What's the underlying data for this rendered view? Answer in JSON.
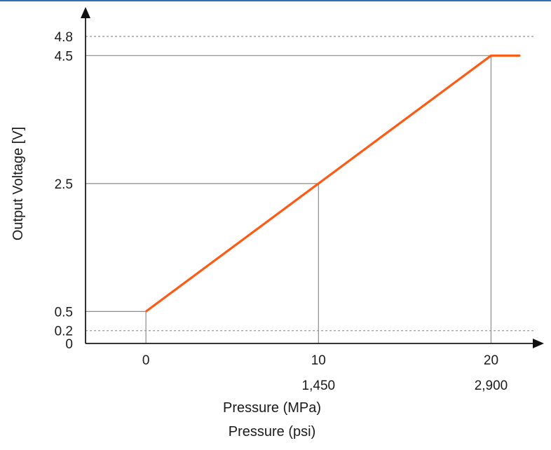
{
  "chart_data": {
    "type": "line",
    "ylabel": "Output Voltage [V]",
    "xlabel_primary": "Pressure (MPa)",
    "xlabel_secondary": "Pressure (psi)",
    "xlim": [
      -3.5,
      22.5
    ],
    "ylim": [
      0,
      5.15
    ],
    "x_ticks": [
      {
        "value": 0,
        "label": "0",
        "sublabel": ""
      },
      {
        "value": 10,
        "label": "10",
        "sublabel": "1,450"
      },
      {
        "value": 20,
        "label": "20",
        "sublabel": "2,900"
      }
    ],
    "y_ticks": [
      {
        "value": 0,
        "label": "0"
      },
      {
        "value": 0.2,
        "label": "0.2"
      },
      {
        "value": 0.5,
        "label": "0.5"
      },
      {
        "value": 2.5,
        "label": "2.5"
      },
      {
        "value": 4.5,
        "label": "4.5"
      },
      {
        "value": 4.8,
        "label": "4.8"
      }
    ],
    "dashed_ref_lines_y": [
      0.2,
      4.8
    ],
    "series": [
      {
        "x": [
          0,
          10,
          20,
          21.7
        ],
        "y": [
          0.5,
          2.5,
          4.5,
          4.5
        ],
        "color": "#ff5a14"
      }
    ],
    "accent_color": "#2f6db5"
  }
}
